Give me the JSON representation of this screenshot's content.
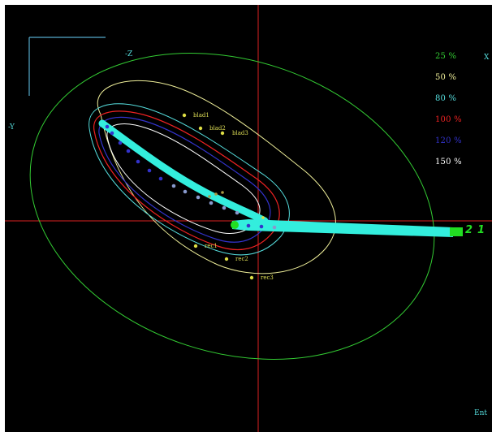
{
  "view": {
    "axis_labels": {
      "x": "X",
      "minus_z": "-Z",
      "minus_y": "-Y",
      "footer": "Ent"
    },
    "isodose_legend": [
      "25 %",
      "50 %",
      "80 %",
      "100 %",
      "120 %",
      "150 %"
    ],
    "isodose_colors": [
      "#33cc33",
      "#eeee99",
      "#55dddd",
      "#ee2222",
      "#3333cc",
      "#ffffff"
    ],
    "markers": [
      "blad1",
      "blad2",
      "blad3",
      "rec1",
      "rec2",
      "rec3"
    ],
    "beam_labels": [
      "2",
      "1"
    ],
    "crosshair_color": "#dd2222",
    "applicator_color": "#33eedd"
  }
}
